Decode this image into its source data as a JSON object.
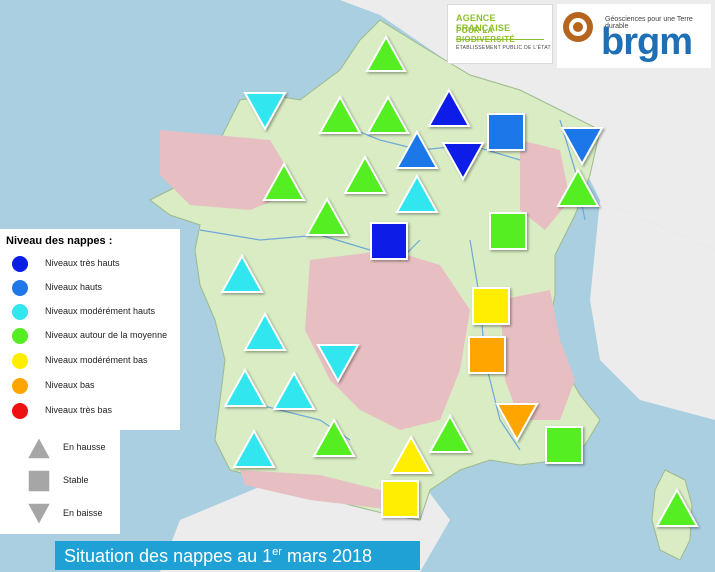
{
  "logos": {
    "afb": {
      "line1": "AGENCE FRANÇAISE",
      "line2": "POUR LA BIODIVERSITÉ",
      "line3": "ÉTABLISSEMENT PUBLIC DE L'ÉTAT"
    },
    "brgm": {
      "tagline": "Géosciences pour une Terre durable",
      "wordmark": "brgm"
    }
  },
  "legend": {
    "title": "Niveau des nappes :",
    "levels": [
      {
        "label": "Niveaux très hauts",
        "color": "#0a1ee6"
      },
      {
        "label": "Niveaux hauts",
        "color": "#1f78e8"
      },
      {
        "label": "Niveaux modérément hauts",
        "color": "#33e6f0"
      },
      {
        "label": "Niveaux autour de la moyenne",
        "color": "#55ee22"
      },
      {
        "label": "Niveaux modérément bas",
        "color": "#ffee00"
      },
      {
        "label": "Niveaux bas",
        "color": "#ffa500"
      },
      {
        "label": "Niveaux très bas",
        "color": "#ee1111"
      }
    ],
    "trends": [
      {
        "label": "En hausse",
        "shape": "triangle-up"
      },
      {
        "label": "Stable",
        "shape": "square"
      },
      {
        "label": "En baisse",
        "shape": "triangle-down"
      }
    ]
  },
  "caption": {
    "text_before": "Situation des nappes au 1",
    "superscript": "er",
    "text_after": " mars 2018"
  }
}
